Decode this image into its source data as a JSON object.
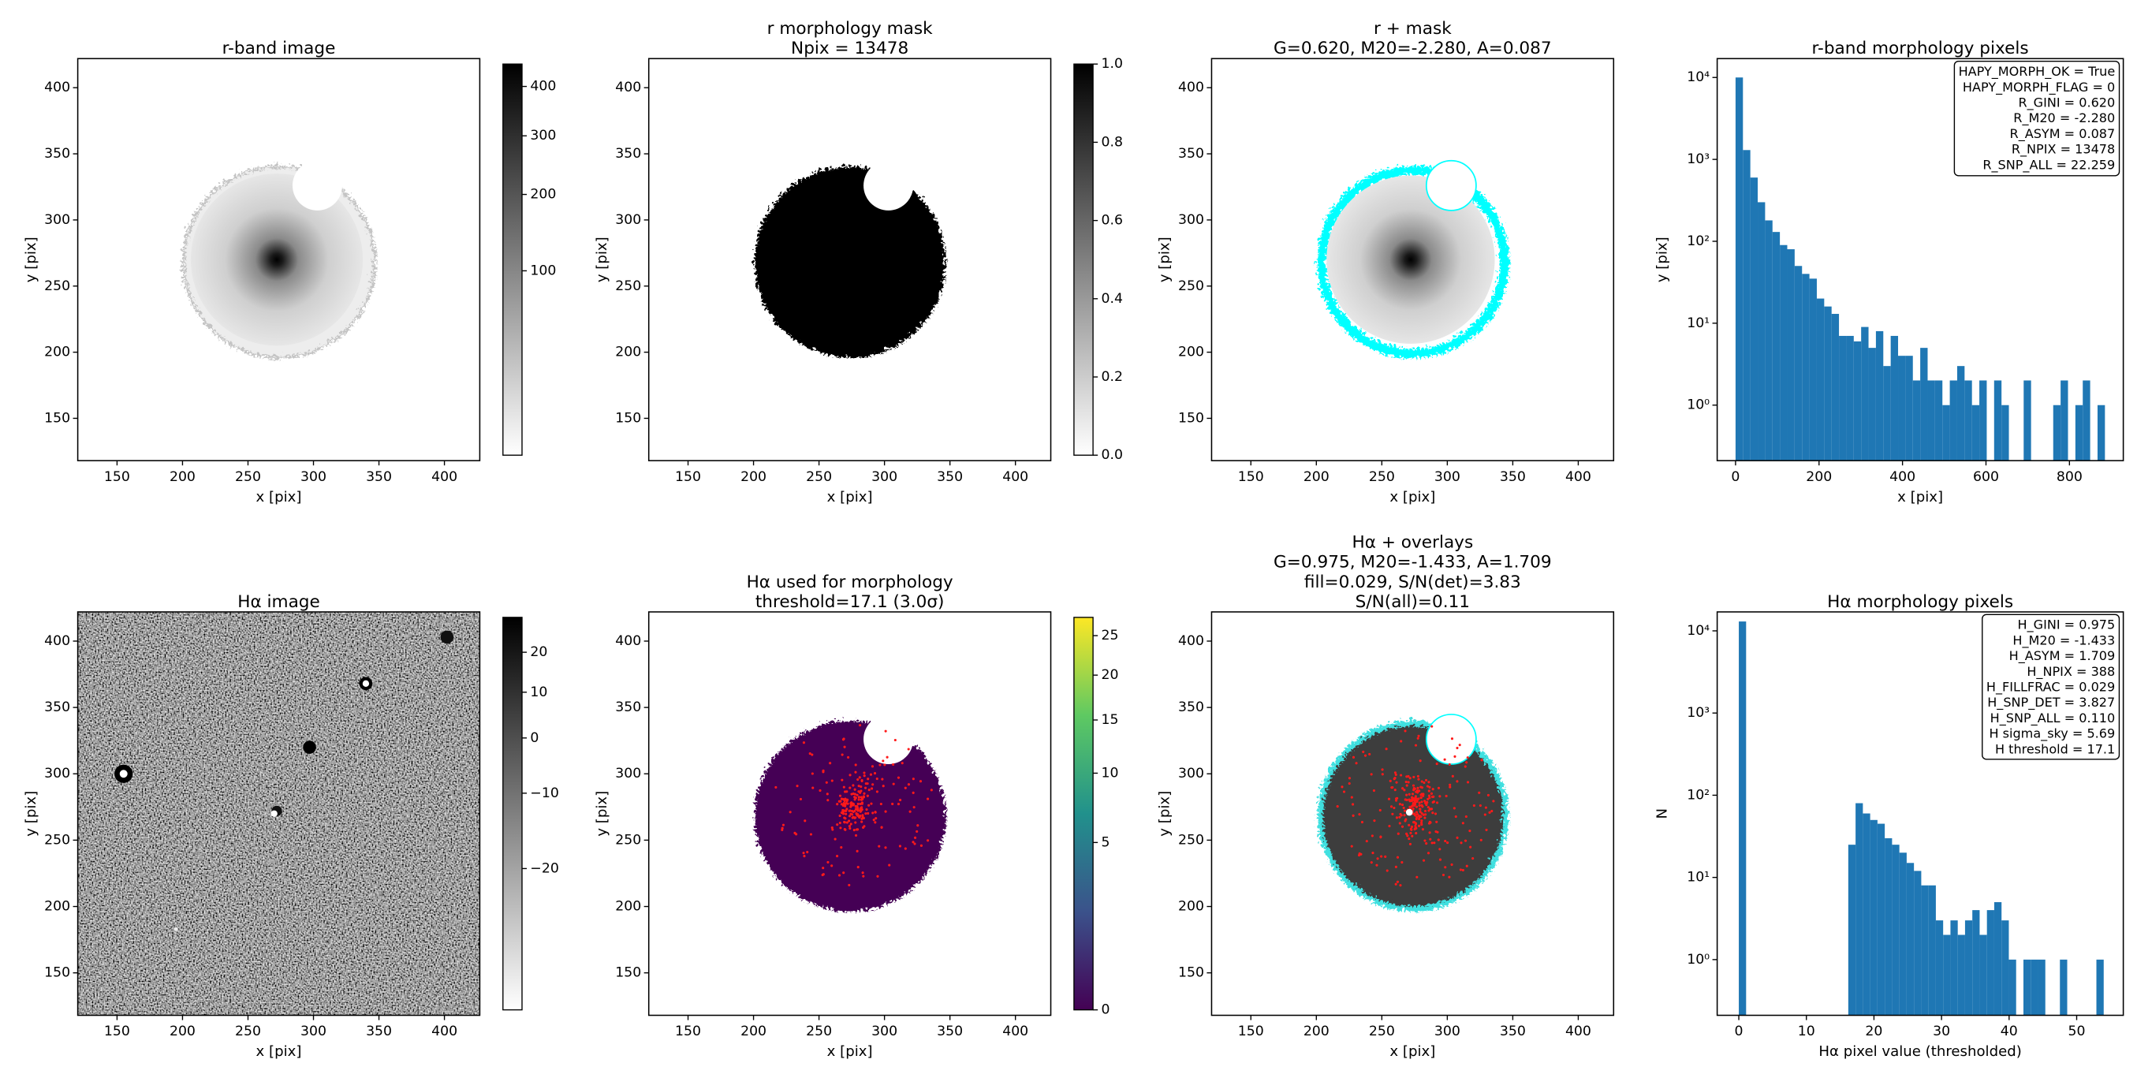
{
  "chart_data": [
    {
      "type": "image",
      "title": [
        "r-band image"
      ],
      "xlabel": "x [pix]",
      "ylabel": "y [pix]",
      "xlim": [
        120,
        427
      ],
      "ylim": [
        118,
        422
      ],
      "xticks": [
        150,
        200,
        250,
        300,
        350,
        400
      ],
      "yticks": [
        150,
        200,
        250,
        300,
        350,
        400
      ],
      "colorbar": {
        "cmap": "Greys",
        "scale": "sqrt",
        "lim": [
          0,
          450
        ],
        "ticks": [
          100,
          200,
          300,
          400
        ]
      }
    },
    {
      "type": "image",
      "title": [
        "r morphology mask",
        "Npix = 13478"
      ],
      "xlabel": "x [pix]",
      "ylabel": "y [pix]",
      "xlim": [
        120,
        427
      ],
      "ylim": [
        118,
        422
      ],
      "xticks": [
        150,
        200,
        250,
        300,
        350,
        400
      ],
      "yticks": [
        150,
        200,
        250,
        300,
        350,
        400
      ],
      "colorbar": {
        "cmap": "Greys",
        "scale": "linear",
        "lim": [
          0,
          1
        ],
        "ticks": [
          {
            "value": 0,
            "label": "0.0"
          },
          0.2,
          0.4,
          0.6,
          0.8,
          {
            "value": 1,
            "label": "1.0"
          }
        ]
      }
    },
    {
      "type": "image",
      "title": [
        "r + mask",
        "G=0.620, M20=-2.280, A=0.087"
      ],
      "xlabel": "x [pix]",
      "ylabel": "y [pix]",
      "xlim": [
        120,
        427
      ],
      "ylim": [
        118,
        422
      ],
      "xticks": [
        150,
        200,
        250,
        300,
        350,
        400
      ],
      "yticks": [
        150,
        200,
        250,
        300,
        350,
        400
      ]
    },
    {
      "type": "histogram",
      "title": [
        "r-band morphology pixels"
      ],
      "xlabel": "x [pix]",
      "ylabel": "y [pix]",
      "log_y": true,
      "color": "#1f77b4",
      "xlim": [
        -44,
        929
      ],
      "xticks": [
        0,
        200,
        400,
        600,
        800
      ],
      "ylim": [
        0.21,
        17000
      ],
      "yticks": [
        {
          "value": 1,
          "label": "10⁰"
        },
        {
          "value": 10,
          "label": "10¹"
        },
        {
          "value": 100,
          "label": "10²"
        },
        {
          "value": 1000,
          "label": "10³"
        },
        {
          "value": 10000,
          "label": "10⁴"
        }
      ],
      "bins": [
        0,
        17.7,
        35.4,
        53.1,
        70.8,
        88.5,
        106.2,
        123.9,
        141.6,
        159.3,
        177,
        194.7,
        212.4,
        230.1,
        247.8,
        265.5,
        283.2,
        300.9,
        318.6,
        336.3,
        354,
        371.7,
        389.4,
        407.1,
        424.8,
        442.5,
        460.2,
        477.9,
        495.6,
        513.3,
        531,
        548.7,
        566.4,
        584.1,
        601.8,
        619.5,
        637.2,
        654.9,
        672.6,
        690.3,
        708,
        725.7,
        743.4,
        761.1,
        778.8,
        796.5,
        814.2,
        831.9,
        849.6,
        867.3,
        885
      ],
      "values": [
        10000,
        1300,
        600,
        300,
        180,
        130,
        90,
        80,
        50,
        40,
        35,
        20,
        16,
        13,
        7,
        7,
        6,
        9,
        5,
        8,
        3,
        7,
        4,
        4,
        2,
        5,
        2,
        2,
        1,
        2,
        3,
        2,
        1,
        2,
        0,
        2,
        1,
        0,
        0,
        2,
        0,
        0,
        0,
        1,
        2,
        0,
        1,
        2,
        0,
        1
      ],
      "annotation": [
        "HAPY_MORPH_OK = True",
        "HAPY_MORPH_FLAG = 0",
        "R_GINI = 0.620",
        "R_M20 = -2.280",
        "R_ASYM = 0.087",
        "R_NPIX = 13478",
        "R_SNP_ALL = 22.259"
      ]
    },
    {
      "type": "image",
      "title": [
        "Hα image"
      ],
      "xlabel": "x [pix]",
      "ylabel": "y [pix]",
      "xlim": [
        120,
        427
      ],
      "ylim": [
        118,
        422
      ],
      "xticks": [
        150,
        200,
        250,
        300,
        350,
        400
      ],
      "yticks": [
        150,
        200,
        250,
        300,
        350,
        400
      ],
      "colorbar": {
        "cmap": "Greys",
        "scale": "sqrt",
        "lim": [
          -27.4,
          29.7
        ],
        "ticks": [
          {
            "value": -20,
            "label": "−20"
          },
          {
            "value": -10,
            "label": "−10"
          },
          0,
          10,
          20
        ]
      }
    },
    {
      "type": "image",
      "title": [
        "Hα used for morphology",
        "threshold=17.1 (3.0σ)"
      ],
      "xlabel": "x [pix]",
      "ylabel": "y [pix]",
      "xlim": [
        120,
        427
      ],
      "ylim": [
        118,
        422
      ],
      "xticks": [
        150,
        200,
        250,
        300,
        350,
        400
      ],
      "yticks": [
        150,
        200,
        250,
        300,
        350,
        400
      ],
      "colorbar": {
        "cmap": "viridis",
        "scale": "sqrt",
        "lim": [
          0,
          27.5
        ],
        "ticks": [
          0,
          5,
          10,
          15,
          20,
          25
        ]
      }
    },
    {
      "type": "image",
      "title": [
        "Hα + overlays",
        "G=0.975, M20=-1.433, A=1.709",
        "fill=0.029, S/N(det)=3.83",
        "S/N(all)=0.11"
      ],
      "xlabel": "x [pix]",
      "ylabel": "y [pix]",
      "xlim": [
        120,
        427
      ],
      "ylim": [
        118,
        422
      ],
      "xticks": [
        150,
        200,
        250,
        300,
        350,
        400
      ],
      "yticks": [
        150,
        200,
        250,
        300,
        350,
        400
      ]
    },
    {
      "type": "histogram",
      "title": [
        "Hα morphology pixels"
      ],
      "xlabel": "Hα pixel value (thresholded)",
      "ylabel": "N",
      "log_y": true,
      "color": "#1f77b4",
      "xlim": [
        -3.2,
        56.9
      ],
      "xticks": [
        0,
        10,
        20,
        30,
        40,
        50
      ],
      "ylim": [
        0.21,
        17000
      ],
      "yticks": [
        {
          "value": 1,
          "label": "10⁰"
        },
        {
          "value": 10,
          "label": "10¹"
        },
        {
          "value": 100,
          "label": "10²"
        },
        {
          "value": 1000,
          "label": "10³"
        },
        {
          "value": 10000,
          "label": "10⁴"
        }
      ],
      "bins": [
        0,
        1.08,
        2.16,
        3.24,
        4.32,
        5.4,
        6.48,
        7.56,
        8.64,
        9.72,
        10.8,
        11.88,
        12.96,
        14.04,
        15.12,
        16.2,
        17.28,
        18.36,
        19.44,
        20.52,
        21.6,
        22.68,
        23.76,
        24.84,
        25.92,
        27,
        28.08,
        29.16,
        30.24,
        31.32,
        32.4,
        33.48,
        34.56,
        35.64,
        36.72,
        37.8,
        38.88,
        39.96,
        41.04,
        42.12,
        43.2,
        44.28,
        45.36,
        46.44,
        47.52,
        48.6,
        49.68,
        50.76,
        51.84,
        52.92,
        54
      ],
      "values": [
        13000,
        0,
        0,
        0,
        0,
        0,
        0,
        0,
        0,
        0,
        0,
        0,
        0,
        0,
        0,
        25,
        80,
        60,
        50,
        45,
        30,
        25,
        20,
        15,
        12,
        8,
        8,
        3,
        2,
        3,
        2,
        3,
        4,
        2,
        4,
        5,
        3,
        1,
        0,
        1,
        1,
        1,
        0,
        0,
        1,
        0,
        0,
        0,
        0,
        1
      ],
      "annotation": [
        "H_GINI = 0.975",
        "H_M20 = -1.433",
        "H_ASYM = 1.709",
        "H_NPIX = 388",
        "H_FILLFRAC = 0.029",
        "H_SNP_DET = 3.827",
        "H_SNP_ALL = 0.110",
        "H sigma_sky = 5.69",
        "H threshold = 17.1"
      ]
    }
  ]
}
